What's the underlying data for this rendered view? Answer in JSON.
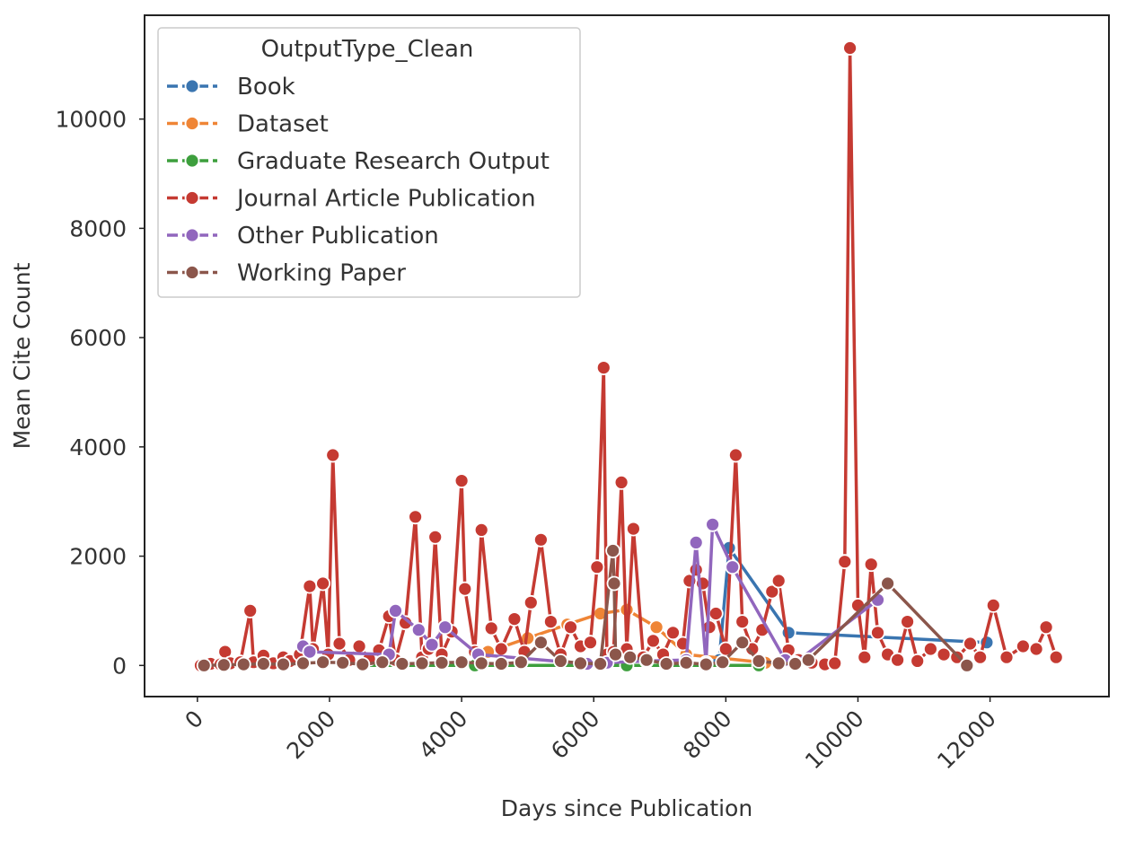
{
  "chart_data": {
    "type": "line",
    "title": "",
    "xlabel": "Days since Publication",
    "ylabel": "Mean Cite Count",
    "xlim": [
      -800,
      13800
    ],
    "ylim": [
      -570,
      11900
    ],
    "x_ticks": [
      0,
      2000,
      4000,
      6000,
      8000,
      10000,
      12000
    ],
    "x_tick_labels": [
      "0",
      "2000",
      "4000",
      "6000",
      "8000",
      "10000",
      "12000"
    ],
    "y_ticks": [
      0,
      2000,
      4000,
      6000,
      8000,
      10000
    ],
    "y_tick_labels": [
      "0",
      "2000",
      "4000",
      "6000",
      "8000",
      "10000"
    ],
    "grid": false,
    "legend": {
      "title": "OutputType_Clean",
      "placement": "upper-left"
    },
    "series": [
      {
        "name": "Book",
        "color": "#3a75b0",
        "x": [
          7900,
          8050,
          8950,
          11950
        ],
        "y": [
          100,
          2150,
          600,
          420
        ]
      },
      {
        "name": "Dataset",
        "color": "#ef8536",
        "x": [
          4400,
          5000,
          5600,
          6100,
          6500,
          6950,
          7400,
          8600
        ],
        "y": [
          250,
          500,
          750,
          950,
          1020,
          700,
          200,
          50
        ]
      },
      {
        "name": "Graduate Research Output",
        "color": "#3d9f3d",
        "x": [
          2500,
          4200,
          6500,
          8500
        ],
        "y": [
          0,
          0,
          0,
          0
        ]
      },
      {
        "name": "Journal Article Publication",
        "color": "#c53a32",
        "x": [
          50,
          200,
          350,
          420,
          500,
          650,
          800,
          850,
          1000,
          1150,
          1300,
          1400,
          1550,
          1700,
          1750,
          1900,
          1980,
          2050,
          2150,
          2300,
          2450,
          2600,
          2750,
          2900,
          3000,
          3150,
          3300,
          3400,
          3500,
          3600,
          3700,
          3850,
          4000,
          4050,
          4200,
          4300,
          4450,
          4600,
          4800,
          4950,
          5050,
          5200,
          5350,
          5500,
          5650,
          5800,
          5950,
          6050,
          6150,
          6200,
          6300,
          6420,
          6500,
          6600,
          6750,
          6900,
          7050,
          7200,
          7350,
          7450,
          7550,
          7650,
          7750,
          7850,
          8000,
          8150,
          8250,
          8400,
          8550,
          8700,
          8800,
          8950,
          9100,
          9300,
          9500,
          9650,
          9800,
          9880,
          10000,
          10100,
          10200,
          10300,
          10450,
          10600,
          10750,
          10900,
          11100,
          11300,
          11500,
          11700,
          11850,
          12050,
          12250,
          12500,
          12700,
          12850,
          13000
        ],
        "y": [
          0,
          30,
          20,
          250,
          40,
          60,
          1000,
          60,
          180,
          40,
          150,
          80,
          200,
          1450,
          300,
          1500,
          200,
          3850,
          400,
          100,
          350,
          120,
          280,
          900,
          100,
          780,
          2720,
          150,
          300,
          2350,
          200,
          620,
          3380,
          1400,
          250,
          2480,
          680,
          300,
          850,
          250,
          1150,
          2300,
          800,
          200,
          700,
          350,
          420,
          1800,
          5450,
          200,
          250,
          3350,
          300,
          2500,
          150,
          450,
          200,
          600,
          400,
          1550,
          1750,
          1500,
          700,
          950,
          300,
          3850,
          800,
          300,
          650,
          1350,
          1550,
          280,
          100,
          50,
          20,
          40,
          1900,
          11300,
          1100,
          150,
          1850,
          600,
          200,
          100,
          800,
          80,
          300,
          200,
          150,
          400,
          150,
          1100,
          150,
          350,
          300,
          700,
          150
        ]
      },
      {
        "name": "Other Publication",
        "color": "#9166bd",
        "x": [
          1600,
          1700,
          2900,
          3000,
          3350,
          3550,
          3750,
          4250,
          5900,
          6200,
          6800,
          7400,
          7550,
          7700,
          7800,
          8100,
          8900,
          9050,
          10300
        ],
        "y": [
          350,
          250,
          200,
          1000,
          650,
          380,
          700,
          200,
          30,
          50,
          80,
          100,
          2250,
          50,
          2580,
          1800,
          100,
          50,
          1200
        ]
      },
      {
        "name": "Working Paper",
        "color": "#8b564b",
        "x": [
          100,
          400,
          700,
          1000,
          1300,
          1600,
          1900,
          2200,
          2500,
          2800,
          3100,
          3400,
          3700,
          4000,
          4300,
          4600,
          4900,
          5200,
          5500,
          5800,
          6100,
          6290,
          6310,
          6330,
          6550,
          6800,
          7100,
          7400,
          7700,
          7950,
          8250,
          8500,
          8800,
          9050,
          9250,
          10450,
          11650
        ],
        "y": [
          0,
          10,
          20,
          30,
          20,
          40,
          60,
          50,
          20,
          60,
          30,
          40,
          50,
          60,
          40,
          30,
          60,
          420,
          80,
          40,
          30,
          2100,
          1500,
          200,
          150,
          100,
          30,
          50,
          20,
          60,
          420,
          80,
          40,
          30,
          100,
          1500,
          0
        ]
      }
    ]
  }
}
